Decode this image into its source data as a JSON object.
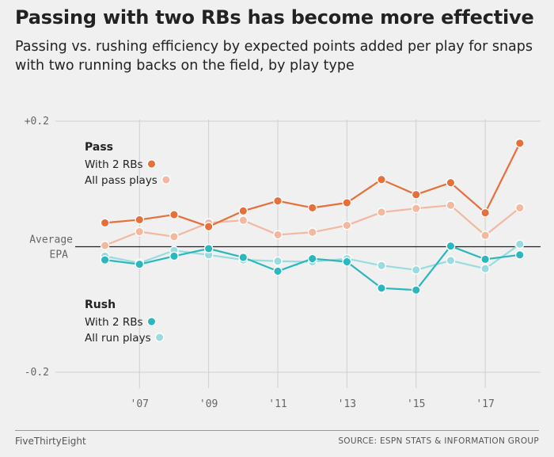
{
  "chart_data": {
    "type": "line",
    "title": "Passing with two RBs has become more effective",
    "subtitle": "Passing vs. rushing efficiency by expected points added per play for snaps with two running backs on the field, by play type",
    "x_tick_labels": [
      "'07",
      "'09",
      "'11",
      "'13",
      "'15",
      "'17"
    ],
    "x_ticks": [
      2007,
      2009,
      2011,
      2013,
      2015,
      2017
    ],
    "xlim": [
      2005.3,
      2018.6
    ],
    "ylim": [
      -0.2,
      0.2
    ],
    "y_ticks": [
      {
        "value": 0.2,
        "label": "+0.2"
      },
      {
        "value": -0.2,
        "label": "-0.2"
      }
    ],
    "baseline_label": [
      "Average",
      "EPA"
    ],
    "grid": true,
    "x": [
      2006,
      2007,
      2008,
      2009,
      2010,
      2011,
      2012,
      2013,
      2014,
      2015,
      2016,
      2017,
      2018
    ],
    "groups": [
      {
        "name": "Pass",
        "series": [
          {
            "name": "With 2 RBs",
            "color": "#e5703b",
            "values": [
              0.038,
              0.043,
              0.051,
              0.032,
              0.057,
              0.073,
              0.062,
              0.07,
              0.107,
              0.083,
              0.102,
              0.054,
              0.165
            ]
          },
          {
            "name": "All pass plays",
            "color": "#f2b8a0",
            "values": [
              0.002,
              0.024,
              0.016,
              0.038,
              0.042,
              0.019,
              0.023,
              0.034,
              0.055,
              0.061,
              0.066,
              0.018,
              0.062
            ]
          }
        ]
      },
      {
        "name": "Rush",
        "series": [
          {
            "name": "With 2 RBs",
            "color": "#2ab7bd",
            "values": [
              -0.021,
              -0.028,
              -0.015,
              -0.003,
              -0.017,
              -0.039,
              -0.019,
              -0.024,
              -0.066,
              -0.069,
              0.001,
              -0.02,
              -0.013
            ]
          },
          {
            "name": "All run plays",
            "color": "#98dcdf",
            "values": [
              -0.015,
              -0.026,
              -0.006,
              -0.013,
              -0.021,
              -0.023,
              -0.024,
              -0.019,
              -0.03,
              -0.037,
              -0.022,
              -0.035,
              0.004
            ]
          }
        ]
      }
    ]
  },
  "footer": {
    "brand": "FiveThirtyEight",
    "source": "SOURCE: ESPN STATS & INFORMATION GROUP"
  }
}
